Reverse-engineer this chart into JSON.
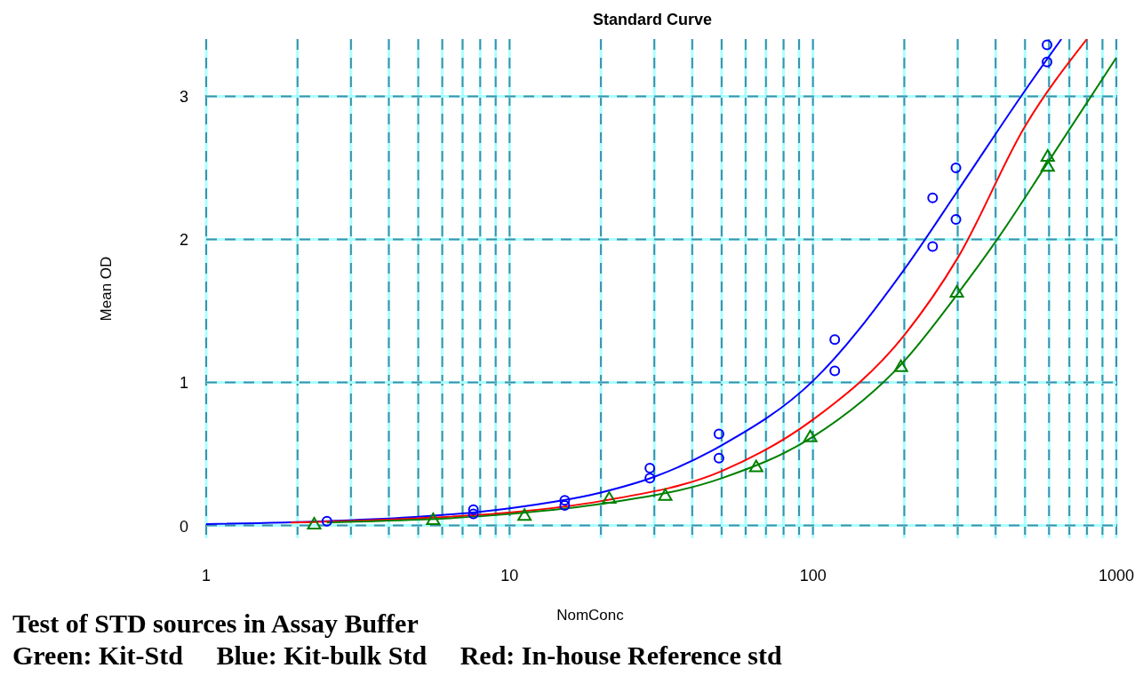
{
  "chart_data": {
    "type": "scatter",
    "title": "Standard Curve",
    "xlabel": "NomConc",
    "ylabel": "Mean OD",
    "log": "x",
    "grid": true,
    "xlim": [
      1,
      1000
    ],
    "ylim": [
      -0.09,
      3.4
    ],
    "xticks": [
      1,
      {
        "value": 2,
        "label": null
      },
      {
        "value": 3,
        "label": null
      },
      {
        "value": 4,
        "label": null
      },
      {
        "value": 5,
        "label": null
      },
      {
        "value": 6,
        "label": null
      },
      {
        "value": 7,
        "label": null
      },
      {
        "value": 8,
        "label": null
      },
      {
        "value": 9,
        "label": null
      },
      10,
      {
        "value": 20,
        "label": null
      },
      {
        "value": 30,
        "label": null
      },
      {
        "value": 40,
        "label": null
      },
      {
        "value": 50,
        "label": null
      },
      {
        "value": 60,
        "label": null
      },
      {
        "value": 70,
        "label": null
      },
      {
        "value": 80,
        "label": null
      },
      {
        "value": 90,
        "label": null
      },
      100,
      {
        "value": 200,
        "label": null
      },
      {
        "value": 300,
        "label": null
      },
      {
        "value": 400,
        "label": null
      },
      {
        "value": 500,
        "label": null
      },
      {
        "value": 600,
        "label": null
      },
      {
        "value": 700,
        "label": null
      },
      {
        "value": 800,
        "label": null
      },
      {
        "value": 900,
        "label": null
      },
      1000
    ],
    "yticks": [
      0,
      1,
      2,
      3
    ],
    "series": [
      {
        "type": "line",
        "color": "#0000ff",
        "marker": "none",
        "line_style": "solid",
        "x": [
          1,
          2.5,
          5,
          10,
          20,
          30,
          50,
          100,
          200,
          300,
          500,
          659
        ],
        "values": [
          0.01,
          0.03,
          0.06,
          0.12,
          0.23,
          0.34,
          0.56,
          1.01,
          1.79,
          2.34,
          3.04,
          3.4
        ]
      },
      {
        "type": "line",
        "color": "#ff0000",
        "marker": "none",
        "line_style": "solid",
        "x": [
          1.9,
          5,
          10,
          20,
          50,
          100,
          200,
          300,
          500,
          800
        ],
        "values": [
          0.02,
          0.05,
          0.09,
          0.17,
          0.38,
          0.74,
          1.33,
          1.87,
          2.79,
          3.4
        ]
      },
      {
        "type": "line",
        "color": "#008000",
        "marker": "none",
        "line_style": "solid",
        "x": [
          2.5,
          10,
          20,
          50,
          100,
          200,
          300,
          405,
          600,
          1000
        ],
        "values": [
          0.02,
          0.08,
          0.15,
          0.33,
          0.62,
          1.15,
          1.62,
          2.0,
          2.55,
          3.27
        ]
      },
      {
        "color": "#0000ff",
        "marker": "circle",
        "x": [
          2.5,
          7.6,
          7.6,
          15.2,
          15.2,
          29,
          29,
          49,
          49,
          118,
          118,
          248,
          248,
          296,
          296,
          591,
          591
        ],
        "values": [
          0.03,
          0.11,
          0.08,
          0.175,
          0.14,
          0.4,
          0.33,
          0.64,
          0.47,
          1.3,
          1.08,
          2.29,
          1.95,
          2.5,
          2.14,
          3.36,
          3.24
        ]
      },
      {
        "color": "#008000",
        "marker": "triangle",
        "x": [
          2.27,
          5.6,
          11.2,
          21.3,
          32.6,
          65,
          98,
          195,
          298,
          594,
          594
        ],
        "values": [
          0.01,
          0.04,
          0.07,
          0.19,
          0.21,
          0.41,
          0.62,
          1.11,
          1.63,
          2.58,
          2.51
        ]
      }
    ],
    "annotations": [
      "Test of STD sources in Assay Buffer",
      "Green: Kit-Std     Blue: Kit-bulk Std     Red: In-house Reference std"
    ]
  }
}
